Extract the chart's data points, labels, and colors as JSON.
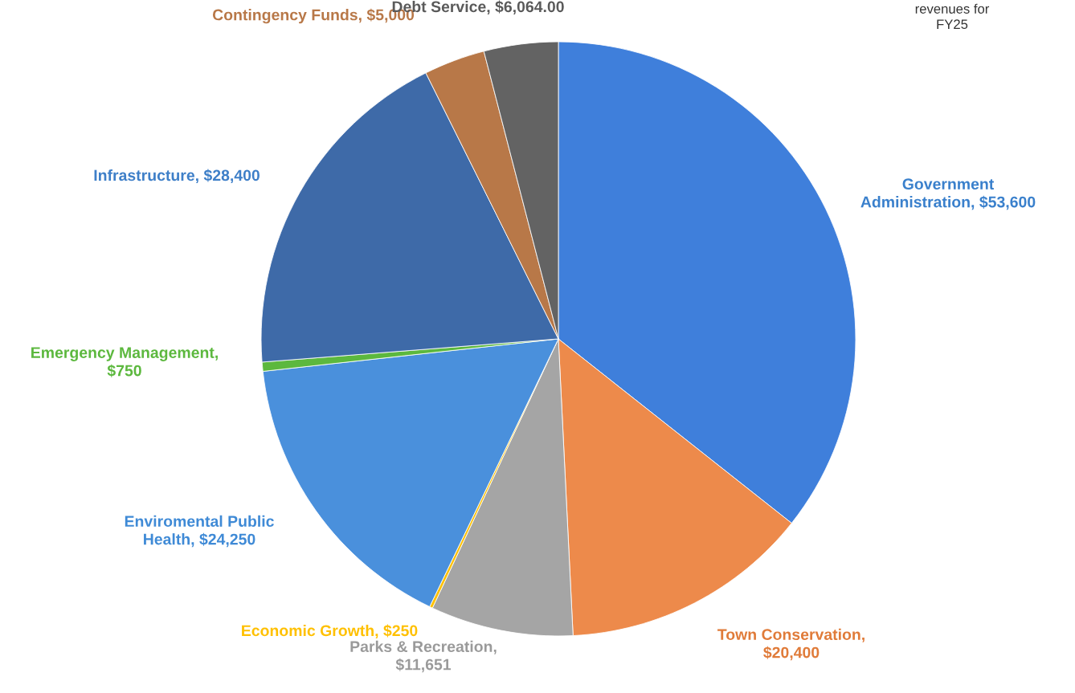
{
  "chart_data": {
    "type": "pie",
    "categories": [
      "Government Administration, $53,600",
      "Town Conservation, $20,400",
      "Parks & Recreation, $11,651",
      "Economic Growth, $250",
      "Enviromental Public Health, $24,250",
      "Emergency Management, $750",
      "Infrastructure, $28,400",
      "Contingency Funds, $5,000",
      "Debt Service, $6,064.00"
    ],
    "values": [
      53600,
      20400,
      11651,
      250,
      24250,
      750,
      28400,
      5000,
      6064
    ],
    "colors": [
      "#3f7fdb",
      "#ed8a4b",
      "#a5a5a5",
      "#ffc000",
      "#4a90dc",
      "#5cb83e",
      "#3e6aa8",
      "#b87848",
      "#636363"
    ],
    "annotations": [
      "revenues for\nFY25"
    ]
  }
}
